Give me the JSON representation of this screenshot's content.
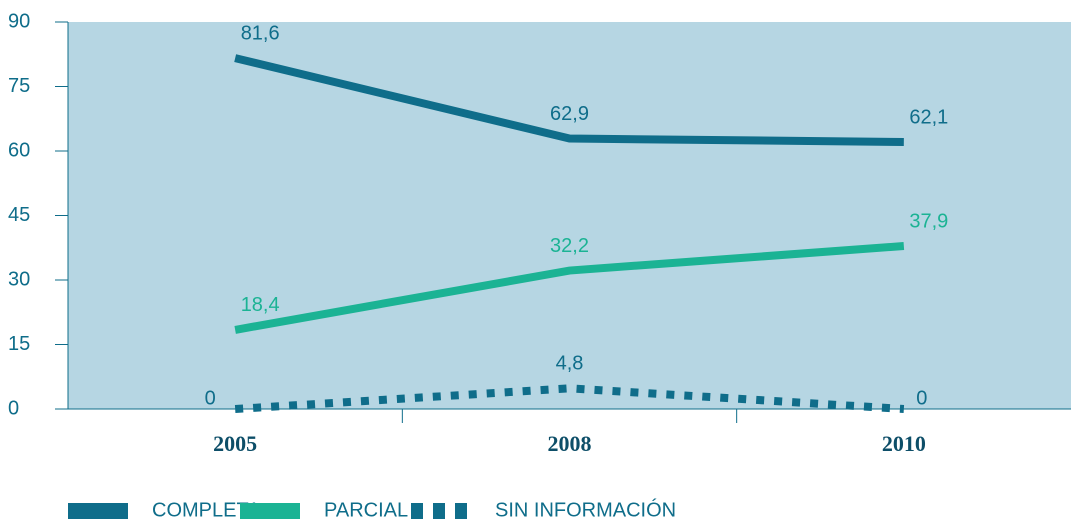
{
  "chart_data": {
    "type": "line",
    "categories": [
      "2005",
      "2008",
      "2010"
    ],
    "series": [
      {
        "name": "COMPLETA",
        "color": "#0f6d8a",
        "dash": false,
        "values": [
          81.6,
          62.9,
          62.1
        ],
        "value_labels": [
          "81,6",
          "62,9",
          "62,1"
        ]
      },
      {
        "name": "PARCIAL",
        "color": "#1bb394",
        "dash": false,
        "values": [
          18.4,
          32.2,
          37.9
        ],
        "value_labels": [
          "18,4",
          "32,2",
          "37,9"
        ]
      },
      {
        "name": "SIN INFORMACIÓN",
        "color": "#0f6d8a",
        "dash": true,
        "values": [
          0,
          4.8,
          0
        ],
        "value_labels": [
          "0",
          "4,8",
          "0"
        ]
      }
    ],
    "ylim": [
      0,
      90
    ],
    "yticks": [
      0,
      15,
      30,
      45,
      60,
      75,
      90
    ]
  }
}
